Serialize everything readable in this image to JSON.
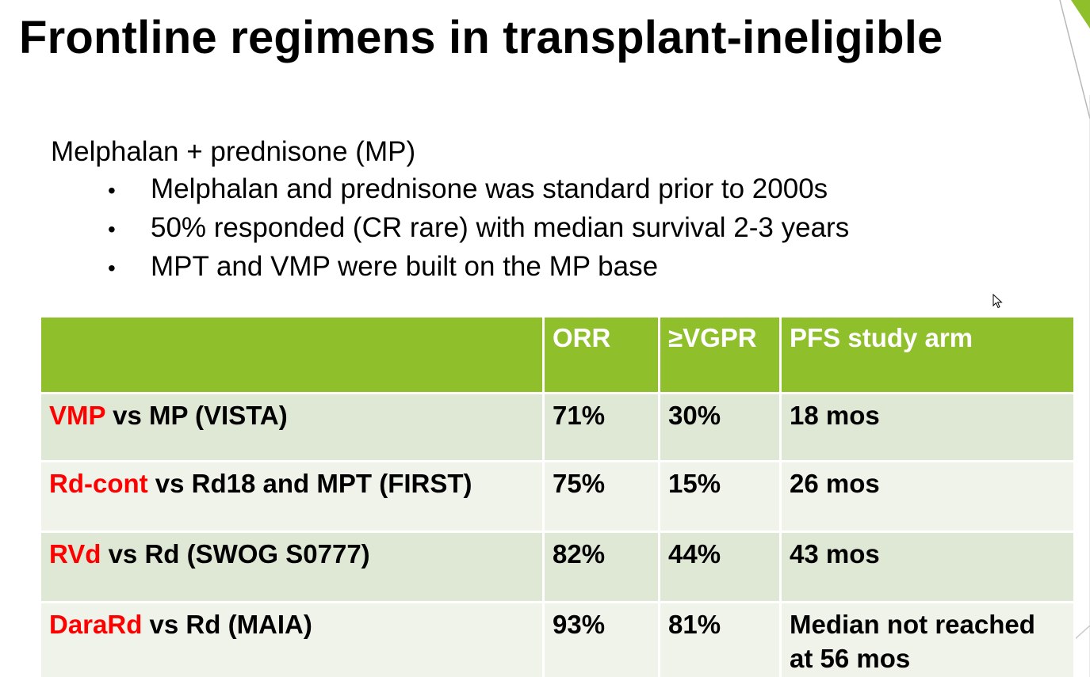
{
  "slide": {
    "title": "Frontline regimens in transplant-ineligible",
    "intro": "Melphalan + prednisone (MP)",
    "bullet_symbol": "•",
    "bullets": [
      "Melphalan and prednisone was standard prior to 2000s",
      "50% responded (CR rare) with median survival 2-3 years",
      "MPT and VMP were built on the MP base"
    ]
  },
  "table": {
    "headers": [
      "",
      "ORR",
      "≥VGPR",
      "PFS study arm"
    ],
    "rows": [
      {
        "highlight": "VMP",
        "rest": " vs MP (VISTA)",
        "orr": "71%",
        "vgpr": "30%",
        "pfs": "18 mos"
      },
      {
        "highlight": "Rd-cont",
        "rest": " vs Rd18 and MPT (FIRST)",
        "orr": "75%",
        "vgpr": "15%",
        "pfs": "26 mos"
      },
      {
        "highlight": "RVd",
        "rest": " vs Rd (SWOG S0777)",
        "orr": "82%",
        "vgpr": "44%",
        "pfs": "43 mos"
      },
      {
        "highlight": "DaraRd",
        "rest": " vs Rd (MAIA)",
        "orr": "93%",
        "vgpr": "81%",
        "pfs": "Median not reached at 56 mos"
      }
    ]
  },
  "colors": {
    "header_bg": "#8fbf2a",
    "row_odd_bg": "#dfe8d4",
    "row_even_bg": "#eff3ea",
    "highlight_text": "#ff0000"
  },
  "icons": {
    "cursor": "mouse-pointer-icon"
  }
}
